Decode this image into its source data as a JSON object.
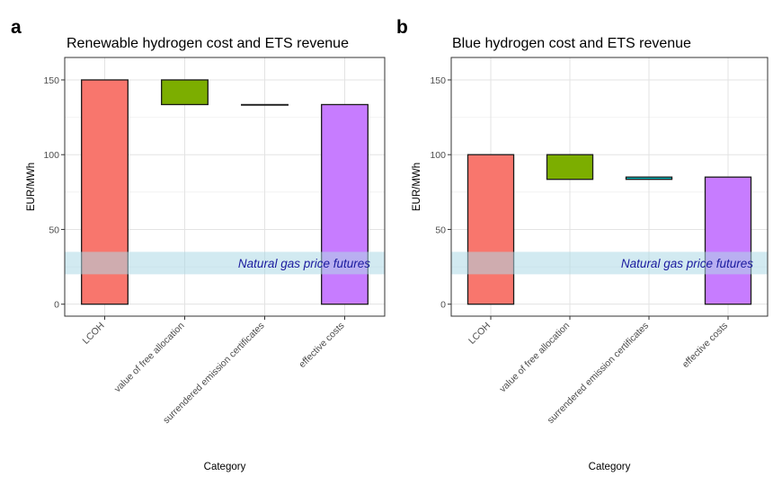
{
  "figure": {
    "panels": [
      {
        "letter": "a"
      },
      {
        "letter": "b"
      }
    ]
  },
  "chart_data": [
    {
      "type": "bar",
      "panel": "a",
      "title": "Renewable hydrogen cost and ETS revenue",
      "xlabel": "Category",
      "ylabel": "EUR/MWh",
      "ylim": [
        -8,
        165
      ],
      "yticks": [
        0,
        50,
        100,
        150
      ],
      "grid": true,
      "categories": [
        "LCOH",
        "value of free allocation",
        "surrendered emission certificates",
        "effective costs"
      ],
      "bars": [
        {
          "category": "LCOH",
          "start": 0,
          "end": 150,
          "color": "#f8766d"
        },
        {
          "category": "value of free allocation",
          "start": 133.5,
          "end": 150,
          "color": "#7cae00"
        },
        {
          "category": "surrendered emission certificates",
          "start": 133.5,
          "end": 133.5,
          "color": "#00bfc4"
        },
        {
          "category": "effective costs",
          "start": 0,
          "end": 133.5,
          "color": "#c77cff"
        }
      ],
      "band": {
        "label": "Natural gas price futures",
        "ymin": 20,
        "ymax": 35,
        "color": "#add8e6"
      }
    },
    {
      "type": "bar",
      "panel": "b",
      "title": "Blue hydrogen cost and ETS revenue",
      "xlabel": "Category",
      "ylabel": "EUR/MWh",
      "ylim": [
        -8,
        165
      ],
      "yticks": [
        0,
        50,
        100,
        150
      ],
      "grid": true,
      "categories": [
        "LCOH",
        "value of free allocation",
        "surrendered emission certificates",
        "effective costs"
      ],
      "bars": [
        {
          "category": "LCOH",
          "start": 0,
          "end": 100,
          "color": "#f8766d"
        },
        {
          "category": "value of free allocation",
          "start": 83.5,
          "end": 100,
          "color": "#7cae00"
        },
        {
          "category": "surrendered emission certificates",
          "start": 83.5,
          "end": 85,
          "color": "#00bfc4"
        },
        {
          "category": "effective costs",
          "start": 0,
          "end": 85,
          "color": "#c77cff"
        }
      ],
      "band": {
        "label": "Natural gas price futures",
        "ymin": 20,
        "ymax": 35,
        "color": "#add8e6"
      }
    }
  ]
}
